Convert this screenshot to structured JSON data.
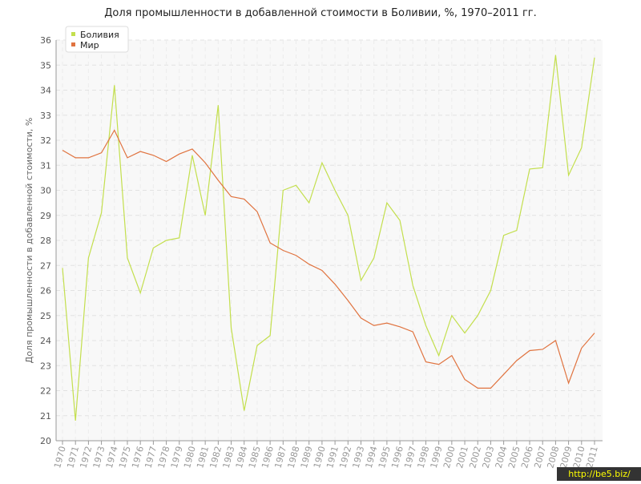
{
  "chart_data": {
    "type": "line",
    "title": "Доля промышленности в добавленной стоимости в Боливии, %, 1970–2011 гг.",
    "y_label": "Доля промышленности в добавленной стоимости, %",
    "categories": [
      "1970",
      "1971",
      "1972",
      "1973",
      "1974",
      "1975",
      "1976",
      "1977",
      "1978",
      "1979",
      "1980",
      "1981",
      "1982",
      "1983",
      "1984",
      "1985",
      "1986",
      "1987",
      "1988",
      "1989",
      "1990",
      "1991",
      "1992",
      "1993",
      "1994",
      "1995",
      "1996",
      "1997",
      "1998",
      "1999",
      "2000",
      "2001",
      "2002",
      "2003",
      "2004",
      "2005",
      "2006",
      "2007",
      "2008",
      "2009",
      "2010",
      "2011"
    ],
    "series": [
      {
        "name": "Боливия",
        "color": "#c3df4d",
        "values": [
          26.9,
          20.8,
          27.3,
          29.1,
          34.2,
          27.3,
          25.9,
          27.7,
          28.0,
          28.1,
          31.4,
          29.0,
          33.4,
          24.5,
          21.2,
          23.8,
          24.2,
          30.0,
          30.2,
          29.5,
          31.1,
          30.0,
          29.0,
          26.4,
          27.3,
          29.5,
          28.8,
          26.2,
          24.6,
          23.4,
          25.0,
          24.3,
          25.0,
          26.0,
          28.2,
          28.4,
          30.85,
          30.9,
          35.4,
          30.6,
          31.7,
          35.3
        ]
      },
      {
        "name": "Мир",
        "color": "#e0733f",
        "values": [
          31.6,
          31.3,
          31.3,
          31.5,
          32.4,
          31.3,
          31.55,
          31.4,
          31.15,
          31.45,
          31.65,
          31.1,
          30.4,
          29.75,
          29.65,
          29.15,
          27.9,
          27.6,
          27.4,
          27.05,
          26.8,
          26.25,
          25.6,
          24.9,
          24.6,
          24.7,
          24.55,
          24.35,
          23.15,
          23.05,
          23.4,
          22.45,
          22.1,
          22.1,
          22.65,
          23.2,
          23.6,
          23.65,
          24.0,
          22.3,
          23.7,
          24.3
        ]
      }
    ],
    "ylim": [
      20,
      36
    ],
    "yticks": [
      20,
      21,
      22,
      23,
      24,
      25,
      26,
      27,
      28,
      29,
      30,
      31,
      32,
      33,
      34,
      35,
      36
    ],
    "grid": true,
    "legend": "top-left"
  },
  "watermark": "http://be5.biz/"
}
